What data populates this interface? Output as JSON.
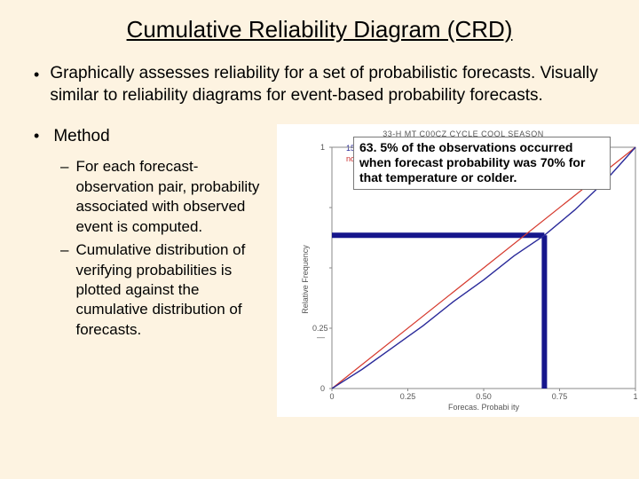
{
  "title": "Cumulative Reliability Diagram (CRD)",
  "bullet1": "Graphically assesses reliability for a set of probabilistic forecasts.  Visually similar to reliability diagrams for event-based probability forecasts.",
  "method_label": "Method",
  "sub1": "For each forecast-observation pair, probability associated with observed event is computed.",
  "sub2": "Cumulative distribution of verifying probabilities is plotted against the cumulative distribution of forecasts.",
  "callout_text": "63. 5% of the observations occurred when forecast probability was 70% for that temperature or colder.",
  "chart": {
    "type": "line",
    "background_color": "#ffffff",
    "title_small": "33-H MT C00CZ CYCLE COOL SEASON",
    "legend1": "1550 Sta",
    "legend2": "no V —Ers",
    "legend1_color": "#2a2a9a",
    "legend2_color": "#c92a2a",
    "xlabel": "Forecas. Probabi ity",
    "ylabel": "Relative Frequency",
    "xlim": [
      0,
      1
    ],
    "ylim": [
      0,
      1
    ],
    "xticks": [
      0,
      0.25,
      0.5,
      0.75,
      1
    ],
    "yticks": [
      0,
      0.25,
      0.5,
      0.75,
      1
    ],
    "ytick_labels": [
      "0",
      "0.25 —",
      "",
      "",
      "1"
    ],
    "gridline_x": 0.7,
    "gridline_y": 0.635,
    "gridline_color": "#16168c",
    "gridline_width": 6,
    "series_blue": {
      "color": "#2a2a9a",
      "width": 1.4,
      "points": [
        [
          0,
          0
        ],
        [
          0.1,
          0.08
        ],
        [
          0.2,
          0.17
        ],
        [
          0.3,
          0.26
        ],
        [
          0.4,
          0.36
        ],
        [
          0.5,
          0.45
        ],
        [
          0.6,
          0.55
        ],
        [
          0.7,
          0.635
        ],
        [
          0.8,
          0.74
        ],
        [
          0.9,
          0.86
        ],
        [
          1,
          1
        ]
      ]
    },
    "series_red": {
      "color": "#d63a2e",
      "width": 1.2,
      "points": [
        [
          0,
          0
        ],
        [
          0.5,
          0.5
        ],
        [
          1,
          1
        ]
      ]
    },
    "axis_color": "#888888"
  }
}
